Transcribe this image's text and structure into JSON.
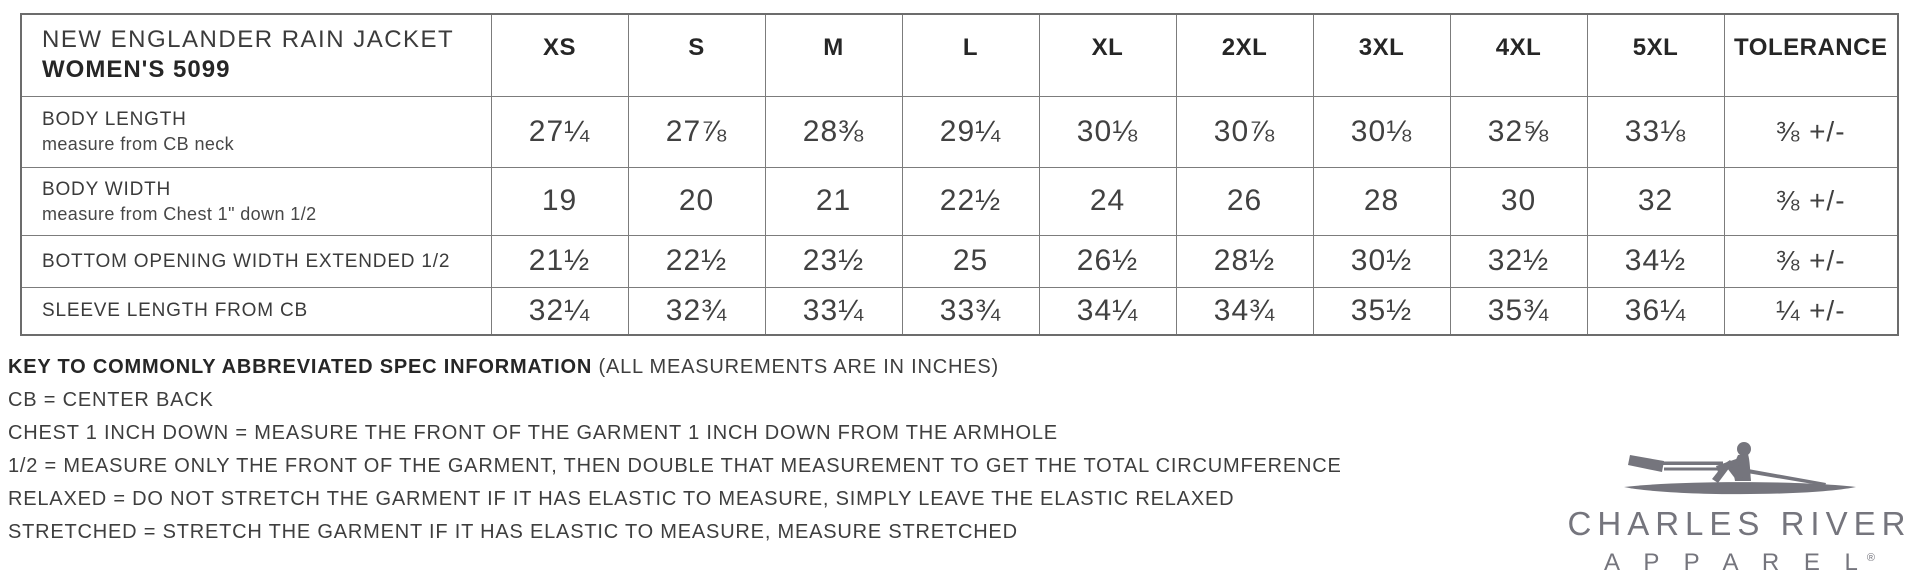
{
  "table": {
    "title_line1": "NEW ENGLANDER RAIN JACKET",
    "title_line2": "WOMEN'S 5099",
    "size_headers": [
      "XS",
      "S",
      "M",
      "L",
      "XL",
      "2XL",
      "3XL",
      "4XL",
      "5XL",
      "TOLERANCE"
    ],
    "rows": [
      {
        "label": "BODY LENGTH",
        "sublabel": "measure from CB neck",
        "values": [
          "27¼",
          "27⅞",
          "28⅜",
          "29¼",
          "30⅛",
          "30⅞",
          "30⅛",
          "32⅝",
          "33⅛"
        ],
        "tolerance": "⅜ +/-"
      },
      {
        "label": "BODY WIDTH",
        "sublabel": "measure from Chest 1\" down 1/2",
        "values": [
          "19",
          "20",
          "21",
          "22½",
          "24",
          "26",
          "28",
          "30",
          "32"
        ],
        "tolerance": "⅜ +/-"
      },
      {
        "label": "BOTTOM OPENING WIDTH EXTENDED 1/2",
        "sublabel": "",
        "values": [
          "21½",
          "22½",
          "23½",
          "25",
          "26½",
          "28½",
          "30½",
          "32½",
          "34½"
        ],
        "tolerance": "⅜ +/-"
      },
      {
        "label": "SLEEVE LENGTH FROM CB",
        "sublabel": "",
        "values": [
          "32¼",
          "32¾",
          "33¼",
          "33¾",
          "34¼",
          "34¾",
          "35½",
          "35¾",
          "36¼"
        ],
        "tolerance": "¼ +/-"
      }
    ]
  },
  "key": {
    "heading_bold": "KEY TO COMMONLY ABBREVIATED SPEC INFORMATION",
    "heading_normal": " (ALL MEASUREMENTS ARE IN INCHES)",
    "lines": [
      "CB = CENTER BACK",
      "CHEST 1 INCH DOWN = MEASURE THE FRONT OF THE GARMENT 1 INCH DOWN FROM THE ARMHOLE",
      "1/2 = MEASURE ONLY THE FRONT OF THE GARMENT, THEN DOUBLE THAT MEASUREMENT TO GET THE TOTAL CIRCUMFERENCE",
      "RELAXED = DO NOT STRETCH THE GARMENT IF IT HAS ELASTIC TO MEASURE, SIMPLY LEAVE THE ELASTIC RELAXED",
      "STRETCHED = STRETCH THE GARMENT IF IT HAS ELASTIC TO MEASURE, MEASURE STRETCHED"
    ]
  },
  "logo": {
    "line1": "CHARLES RIVER",
    "line2": "A P P A R E L",
    "registered": "®",
    "color": "#75757d",
    "icon": "rower-in-scull-icon"
  },
  "colors": {
    "text_dark": "#262626",
    "text_body": "#3b3b3b",
    "grid_line": "#7c7c7c",
    "logo_gray": "#75757d",
    "background": "#ffffff"
  }
}
